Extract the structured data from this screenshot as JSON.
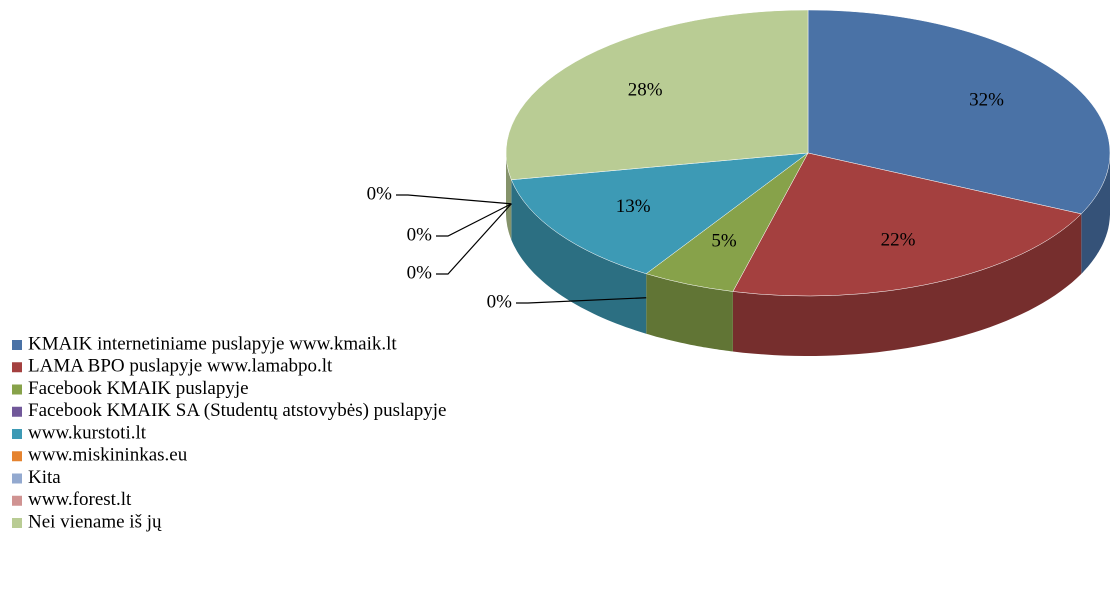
{
  "chart_data": {
    "type": "pie",
    "categories": [
      "KMAIK internetiniame puslapyje www.kmaik.lt",
      "LAMA BPO  puslapyje www.lamabpo.lt",
      "Facebook KMAIK  puslapyje",
      "Facebook KMAIK  SA (Studentų atstovybės) puslapyje",
      "www.kurstoti.lt",
      "www.miskininkas.eu",
      "Kita",
      "www.forest.lt",
      "Nei viename iš jų"
    ],
    "values": [
      32,
      22,
      5,
      0,
      13,
      0,
      0,
      0,
      28
    ],
    "value_labels": [
      "32%",
      "22%",
      "5%",
      "0%",
      "13%",
      "0%",
      "0%",
      "0%",
      "28%"
    ],
    "colors": [
      "#4a72a6",
      "#a4403f",
      "#87a24a",
      "#71589a",
      "#3d9ab5",
      "#e5832f",
      "#93a9cf",
      "#d09392",
      "#b9cc94"
    ],
    "legend": "bottom-left"
  }
}
